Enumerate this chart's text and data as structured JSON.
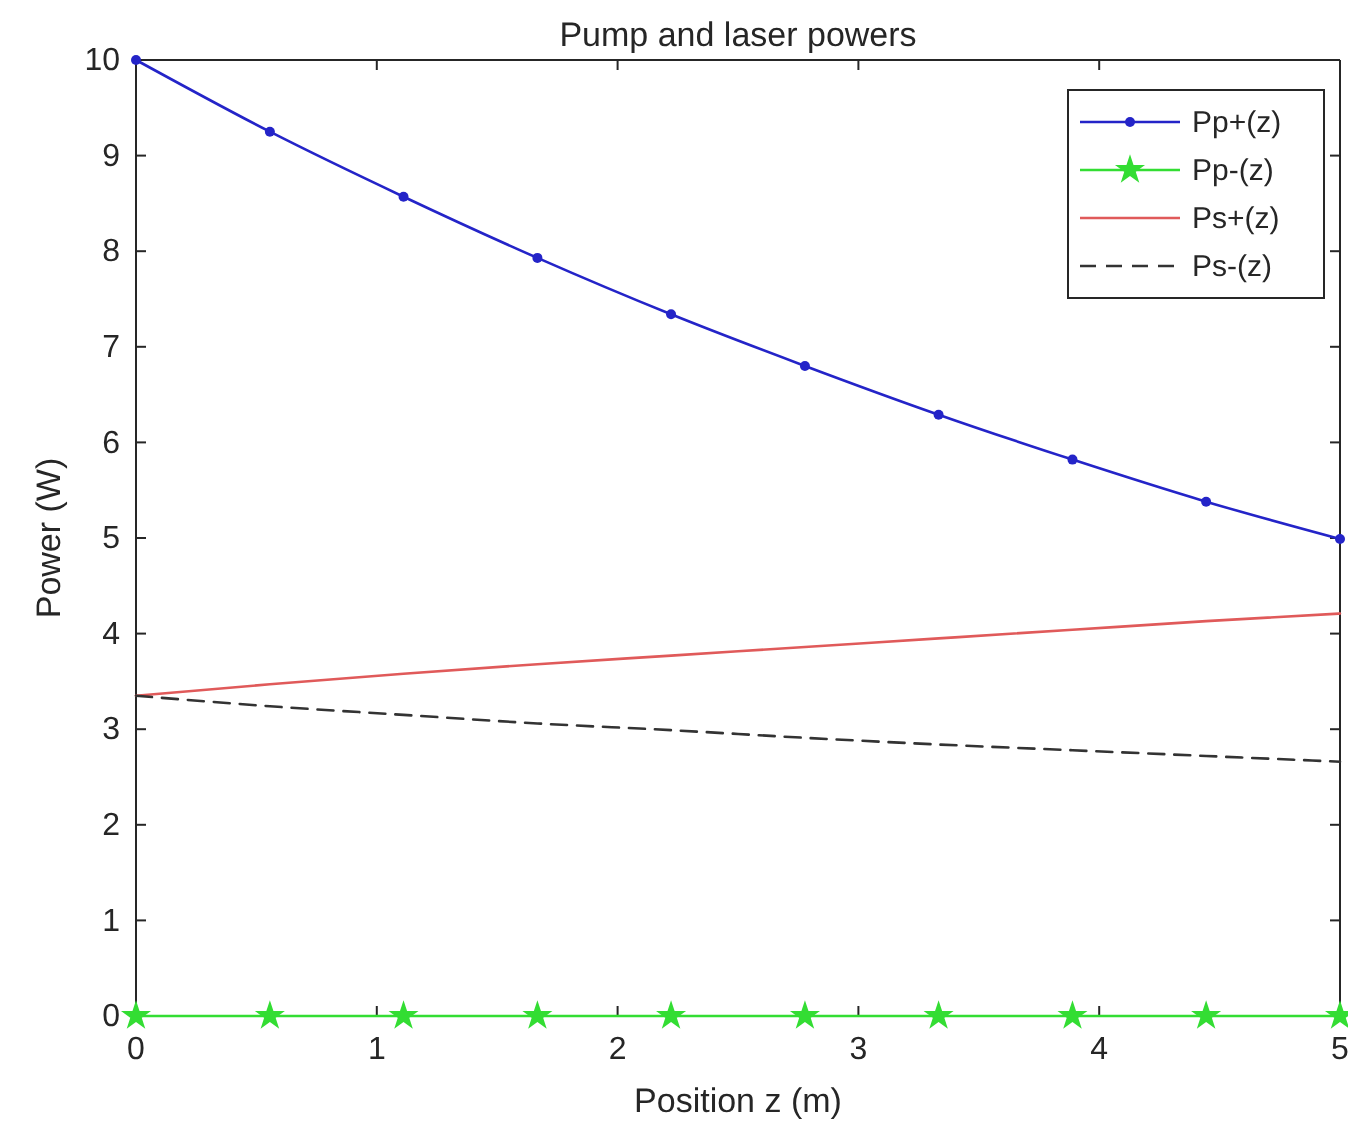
{
  "chart_data": {
    "type": "line",
    "title": "Pump and laser powers",
    "xlabel": "Position z (m)",
    "ylabel": "Power (W)",
    "x": [
      0,
      0.556,
      1.111,
      1.667,
      2.222,
      2.778,
      3.333,
      3.889,
      4.444,
      5
    ],
    "xlim": [
      0,
      5
    ],
    "xticks": [
      0,
      1,
      2,
      3,
      4,
      5
    ],
    "ylim": [
      0,
      10
    ],
    "yticks": [
      0,
      1,
      2,
      3,
      4,
      5,
      6,
      7,
      8,
      9,
      10
    ],
    "grid": false,
    "legend": "top right",
    "series": [
      {
        "name": "Pp+(z)",
        "color": "#2424c8",
        "marker": "circle",
        "line_style": "solid",
        "values": [
          10,
          9.25,
          8.57,
          7.93,
          7.34,
          6.8,
          6.29,
          5.82,
          5.38,
          4.99
        ]
      },
      {
        "name": "Pp-(z)",
        "color": "#33dd33",
        "marker": "star",
        "line_style": "solid",
        "values": [
          0,
          0,
          0,
          0,
          0,
          0,
          0,
          0,
          0,
          0
        ]
      },
      {
        "name": "Ps+(z)",
        "color": "#e05a5a",
        "marker": "none",
        "line_style": "solid",
        "values": [
          3.35,
          3.47,
          3.58,
          3.68,
          3.77,
          3.86,
          3.95,
          4.04,
          4.13,
          4.21
        ]
      },
      {
        "name": "Ps-(z)",
        "color": "#333333",
        "marker": "none",
        "line_style": "dashed",
        "values": [
          3.35,
          3.24,
          3.15,
          3.06,
          2.99,
          2.91,
          2.84,
          2.78,
          2.72,
          2.66
        ]
      }
    ]
  }
}
